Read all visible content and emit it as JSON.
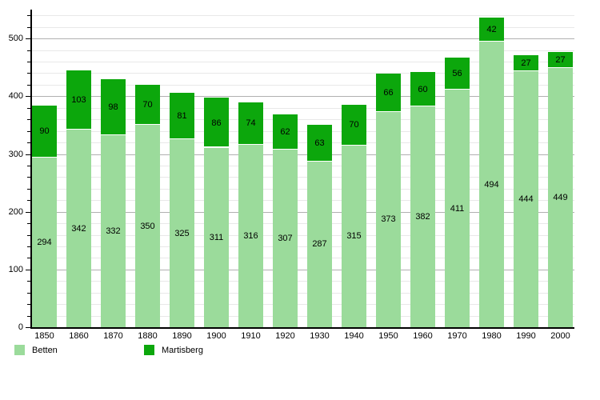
{
  "chart_data": {
    "type": "bar",
    "stacked": true,
    "title": "",
    "xlabel": "",
    "ylabel": "",
    "categories": [
      "1850",
      "1860",
      "1870",
      "1880",
      "1890",
      "1900",
      "1910",
      "1920",
      "1930",
      "1940",
      "1950",
      "1960",
      "1970",
      "1980",
      "1990",
      "2000"
    ],
    "series": [
      {
        "name": "Betten",
        "color": "#9BDB9B",
        "values": [
          294,
          342,
          332,
          350,
          325,
          311,
          316,
          307,
          287,
          315,
          373,
          382,
          411,
          494,
          444,
          449
        ]
      },
      {
        "name": "Martisberg",
        "color": "#0CA70C",
        "values": [
          90,
          103,
          98,
          70,
          81,
          86,
          74,
          62,
          63,
          70,
          66,
          60,
          56,
          42,
          27,
          27
        ]
      }
    ],
    "value_labels": true,
    "ylim": [
      0,
      550
    ],
    "ytick_labels": [
      "0",
      "100",
      "200",
      "300",
      "400",
      "500"
    ],
    "ytick_values": [
      0,
      100,
      200,
      300,
      400,
      500
    ],
    "grid": {
      "minor_step": 20,
      "major_step": 100
    },
    "legend_position": "bottom-left"
  }
}
